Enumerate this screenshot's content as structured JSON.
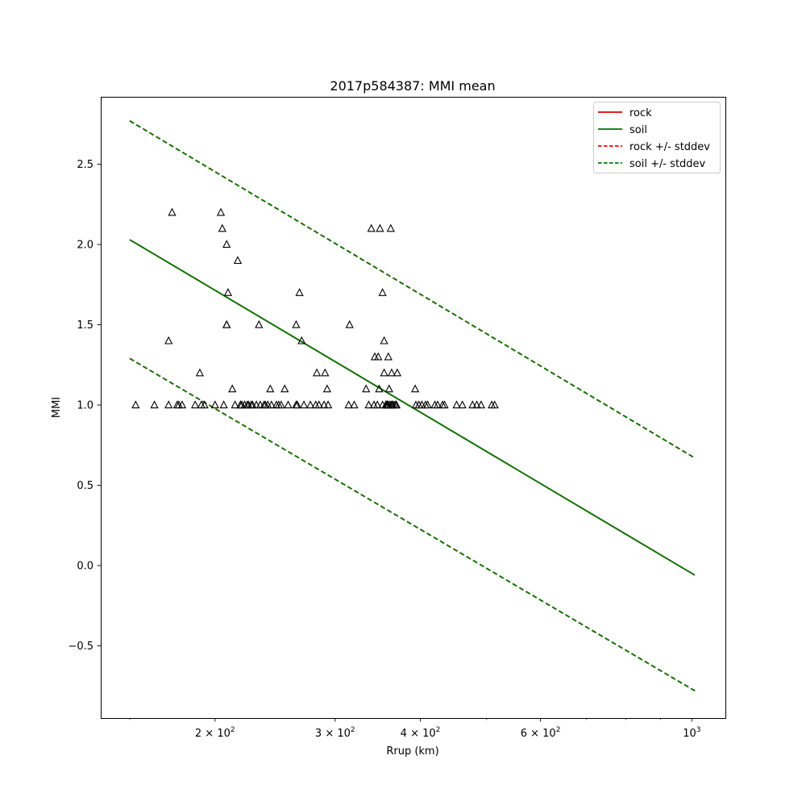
{
  "chart_data": {
    "type": "scatter",
    "title": "2017p584387: MMI mean",
    "xlabel": "Rrup (km)",
    "ylabel": "MMI",
    "xscale": "log",
    "xlim": [
      136,
      1120
    ],
    "ylim": [
      -0.95,
      2.92
    ],
    "grid": false,
    "legend_position": "top-right",
    "x_ticks": [
      {
        "value": 200,
        "label": "2 × 10",
        "exp": "2"
      },
      {
        "value": 300,
        "label": "3 × 10",
        "exp": "2"
      },
      {
        "value": 400,
        "label": "4 × 10",
        "exp": "2"
      },
      {
        "value": 600,
        "label": "6 × 10",
        "exp": "2"
      },
      {
        "value": 1000,
        "label": "10",
        "exp": "3"
      }
    ],
    "y_ticks": [
      {
        "value": -0.5,
        "label": "−0.5"
      },
      {
        "value": 0.0,
        "label": "0.0"
      },
      {
        "value": 0.5,
        "label": "0.5"
      },
      {
        "value": 1.0,
        "label": "1.0"
      },
      {
        "value": 1.5,
        "label": "1.5"
      },
      {
        "value": 2.0,
        "label": "2.0"
      },
      {
        "value": 2.5,
        "label": "2.5"
      }
    ],
    "series": [
      {
        "name": "rock",
        "style": "solid",
        "color": "#dd0000",
        "x": [
          150,
          1010
        ],
        "y": [
          2.03,
          -0.06
        ]
      },
      {
        "name": "soil",
        "style": "solid",
        "color": "#007700",
        "x": [
          150,
          1010
        ],
        "y": [
          2.03,
          -0.06
        ]
      },
      {
        "name": "rock +/- stddev",
        "style": "dashed",
        "color": "#ff0000",
        "x": [
          150,
          1010
        ],
        "upper": [
          2.77,
          0.67
        ],
        "lower": [
          1.29,
          -0.78
        ]
      },
      {
        "name": "soil +/- stddev",
        "style": "dashed",
        "color": "#007700",
        "x": [
          150,
          1010
        ],
        "upper": [
          2.77,
          0.67
        ],
        "lower": [
          1.29,
          -0.78
        ]
      }
    ],
    "observations": {
      "marker": "triangle",
      "color": "#000000",
      "x": [
        153,
        163,
        171,
        171,
        173,
        176,
        177,
        179,
        187,
        190,
        191,
        193,
        200,
        204,
        205,
        206,
        208,
        208,
        208,
        209,
        212,
        214,
        216,
        218,
        218,
        219,
        221,
        223,
        224,
        226,
        227,
        230,
        232,
        233,
        236,
        237,
        239,
        241,
        242,
        246,
        248,
        250,
        253,
        256,
        263,
        263,
        264,
        266,
        268,
        270,
        276,
        281,
        282,
        284,
        289,
        290,
        292,
        293,
        314,
        315,
        320,
        333,
        336,
        339,
        342,
        343,
        346,
        347,
        348,
        349,
        352,
        352,
        354,
        354,
        356,
        356,
        357,
        357,
        358,
        358,
        359,
        359,
        360,
        361,
        361,
        362,
        363,
        363,
        364,
        364,
        366,
        368,
        369,
        370,
        393,
        394,
        398,
        402,
        407,
        410,
        420,
        424,
        431,
        434,
        452,
        461,
        477,
        484,
        491,
        509,
        514
      ],
      "y": [
        1.0,
        1.0,
        1.4,
        1.0,
        2.2,
        1.0,
        1.0,
        1.0,
        1.0,
        1.2,
        1.0,
        1.0,
        1.0,
        2.2,
        2.1,
        1.0,
        2.0,
        1.5,
        1.5,
        1.7,
        1.1,
        1.0,
        1.9,
        1.0,
        1.0,
        1.0,
        1.0,
        1.0,
        1.0,
        1.0,
        1.0,
        1.0,
        1.5,
        1.0,
        1.0,
        1.0,
        1.0,
        1.1,
        1.0,
        1.0,
        1.0,
        1.0,
        1.1,
        1.0,
        1.0,
        1.5,
        1.0,
        1.7,
        1.4,
        1.0,
        1.0,
        1.0,
        1.2,
        1.0,
        1.0,
        1.2,
        1.1,
        1.0,
        1.0,
        1.5,
        1.0,
        1.1,
        1.0,
        2.1,
        1.0,
        1.3,
        1.0,
        1.3,
        1.1,
        2.1,
        1.0,
        1.7,
        1.2,
        1.4,
        1.0,
        1.0,
        1.0,
        1.0,
        1.0,
        1.0,
        1.0,
        1.3,
        1.1,
        1.0,
        1.0,
        2.1,
        1.2,
        1.0,
        1.0,
        1.0,
        1.0,
        1.0,
        1.0,
        1.2,
        1.1,
        1.0,
        1.0,
        1.0,
        1.0,
        1.0,
        1.0,
        1.0,
        1.0,
        1.0,
        1.0,
        1.0,
        1.0,
        1.0,
        1.0,
        1.0,
        1.0
      ]
    }
  }
}
